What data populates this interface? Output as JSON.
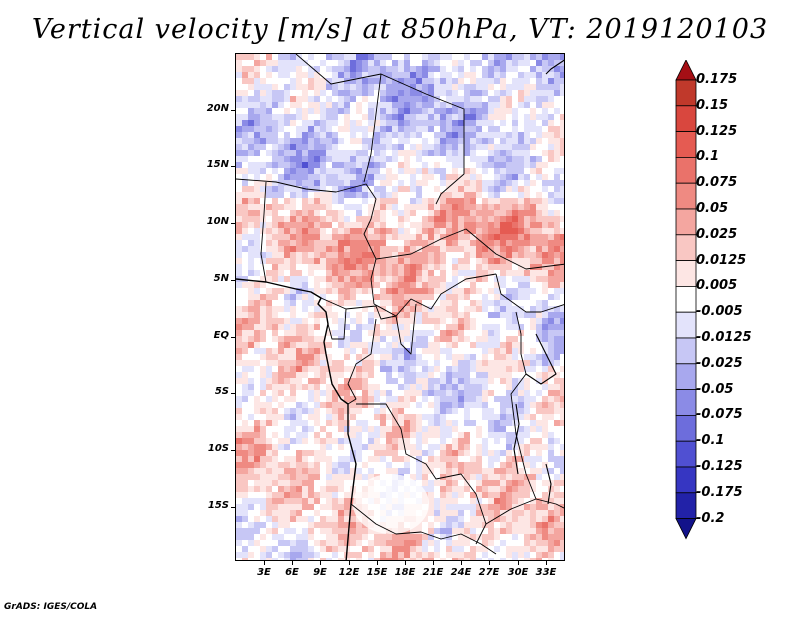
{
  "title": "Vertical velocity [m/s] at 850hPa, VT: 2019120103",
  "footer": "GrADS: IGES/COLA",
  "map": {
    "lat_labels": [
      "20N",
      "15N",
      "10N",
      "5N",
      "EQ",
      "5S",
      "10S",
      "15S"
    ],
    "lon_labels": [
      "3E",
      "6E",
      "9E",
      "12E",
      "15E",
      "18E",
      "21E",
      "24E",
      "27E",
      "30E",
      "33E"
    ],
    "ocean_color": "#ffffff",
    "coast_color": "#000000"
  },
  "colorbar": {
    "labels": [
      "0.175",
      "0.15",
      "0.125",
      "0.1",
      "0.075",
      "0.05",
      "0.025",
      "0.0125",
      "0.005",
      "-0.005",
      "-0.0125",
      "-0.025",
      "-0.05",
      "-0.075",
      "-0.1",
      "-0.125",
      "-0.175",
      "-0.2"
    ],
    "colors": [
      "#a50f15",
      "#c0392b",
      "#d9473e",
      "#e55b52",
      "#ea726a",
      "#ef8a82",
      "#f4a6a0",
      "#f9c7c3",
      "#fde6e4",
      "#ffffff",
      "#e3e3fb",
      "#c7c7f5",
      "#a8a8ee",
      "#8b8be6",
      "#6d6ddc",
      "#5050d2",
      "#3636c2",
      "#2222a8",
      "#12128a"
    ]
  }
}
